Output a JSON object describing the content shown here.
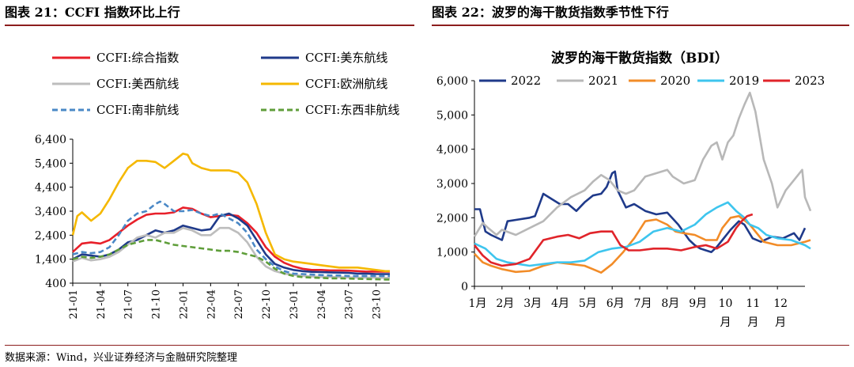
{
  "left_title": "图表 21：CCFI 指数环比上行",
  "right_title": "图表 22：波罗的海干散货指数季节性下行",
  "source": "数据来源：Wind，兴业证券经济与金融研究院整理",
  "chart_data": [
    {
      "type": "line",
      "title": "",
      "x_ticks": [
        "21-01",
        "21-04",
        "21-07",
        "21-10",
        "22-01",
        "22-04",
        "22-07",
        "22-10",
        "23-01",
        "23-04",
        "23-07",
        "23-10"
      ],
      "ylim": [
        400,
        6400
      ],
      "y_ticks": [
        "6,400",
        "5,400",
        "4,400",
        "3,400",
        "2,400",
        "1,400",
        "400"
      ],
      "y_tick_values": [
        6400,
        5400,
        4400,
        3400,
        2400,
        1400,
        400
      ],
      "x_range": [
        0,
        34.5
      ],
      "legend_position": "top",
      "series": [
        {
          "name": "CCFI:综合指数",
          "color": "#e8202a",
          "dash": "solid",
          "x": [
            0,
            1,
            2,
            3,
            4,
            5,
            6,
            7,
            8,
            9,
            10,
            11,
            12,
            13,
            14,
            15,
            16,
            17,
            18,
            19,
            20,
            21,
            22,
            23,
            24,
            25,
            26,
            27,
            28,
            29,
            30,
            31,
            32,
            33,
            34,
            34.5
          ],
          "y": [
            1700,
            2050,
            2100,
            2050,
            2200,
            2500,
            2800,
            3050,
            3250,
            3300,
            3300,
            3350,
            3550,
            3500,
            3300,
            3150,
            3200,
            3250,
            3200,
            2900,
            2500,
            1900,
            1500,
            1250,
            1100,
            1000,
            950,
            950,
            930,
            930,
            920,
            900,
            880,
            880,
            880,
            880
          ]
        },
        {
          "name": "CCFI:美东航线",
          "color": "#1f3a8a",
          "dash": "solid",
          "x": [
            0,
            1,
            2,
            3,
            4,
            5,
            6,
            7,
            8,
            9,
            10,
            11,
            12,
            13,
            14,
            15,
            16,
            17,
            18,
            19,
            20,
            21,
            22,
            23,
            24,
            25,
            26,
            27,
            28,
            29,
            30,
            31,
            32,
            33,
            34,
            34.5
          ],
          "y": [
            1400,
            1600,
            1550,
            1500,
            1600,
            1800,
            2100,
            2200,
            2400,
            2600,
            2500,
            2600,
            2800,
            2700,
            2600,
            2650,
            3200,
            3300,
            3100,
            2800,
            2200,
            1600,
            1200,
            1050,
            950,
            900,
            870,
            860,
            850,
            840,
            830,
            800,
            800,
            780,
            780,
            780
          ]
        },
        {
          "name": "CCFI:美西航线",
          "color": "#bdbdbd",
          "dash": "solid",
          "x": [
            0,
            1,
            2,
            3,
            4,
            5,
            6,
            7,
            8,
            9,
            10,
            11,
            12,
            13,
            14,
            15,
            16,
            17,
            18,
            19,
            20,
            21,
            22,
            23,
            24,
            25,
            26,
            27,
            28,
            29,
            30,
            31,
            32,
            33,
            34,
            34.5
          ],
          "y": [
            1300,
            1450,
            1350,
            1400,
            1500,
            1700,
            2000,
            2300,
            2400,
            2300,
            2500,
            2500,
            2700,
            2600,
            2400,
            2400,
            2700,
            2700,
            2500,
            2100,
            1500,
            1100,
            900,
            800,
            750,
            700,
            680,
            660,
            660,
            650,
            640,
            630,
            630,
            630,
            620,
            620
          ]
        },
        {
          "name": "CCFI:欧洲航线",
          "color": "#f5b800",
          "dash": "solid",
          "x": [
            0,
            0.5,
            1,
            2,
            3,
            4,
            5,
            6,
            7,
            8,
            9,
            10,
            11,
            12,
            12.5,
            13,
            14,
            15,
            16,
            17,
            18,
            19,
            20,
            21,
            22,
            23,
            24,
            25,
            26,
            27,
            28,
            29,
            30,
            31,
            32,
            33,
            34,
            34.5
          ],
          "y": [
            2400,
            3200,
            3350,
            3000,
            3300,
            3900,
            4600,
            5200,
            5500,
            5500,
            5450,
            5200,
            5500,
            5800,
            5750,
            5400,
            5200,
            5100,
            5100,
            5100,
            5000,
            4600,
            3700,
            2500,
            1600,
            1400,
            1300,
            1250,
            1200,
            1150,
            1100,
            1050,
            1050,
            1050,
            1000,
            950,
            900,
            900
          ]
        },
        {
          "name": "CCFI:南非航线",
          "color": "#4a88c6",
          "dash": "dash",
          "x": [
            0,
            1,
            2,
            3,
            4,
            5,
            6,
            7,
            8,
            9,
            9.5,
            10,
            11,
            12,
            13,
            14,
            15,
            16,
            17,
            18,
            19,
            20,
            21,
            22,
            23,
            24,
            25,
            26,
            27,
            28,
            29,
            30,
            31,
            32,
            33,
            34,
            34.5
          ],
          "y": [
            1600,
            1700,
            1650,
            1700,
            1900,
            2400,
            3000,
            3300,
            3400,
            3700,
            3800,
            3700,
            3400,
            3400,
            3450,
            3300,
            3200,
            3300,
            3100,
            2900,
            2500,
            1800,
            1400,
            1100,
            900,
            800,
            780,
            760,
            740,
            720,
            720,
            700,
            700,
            700,
            700,
            700,
            700
          ]
        },
        {
          "name": "CCFI:东西非航线",
          "color": "#5f9e3a",
          "dash": "dash",
          "x": [
            0,
            1,
            2,
            3,
            4,
            5,
            6,
            7,
            8,
            9,
            10,
            11,
            12,
            13,
            14,
            15,
            16,
            17,
            18,
            19,
            20,
            21,
            22,
            23,
            24,
            25,
            26,
            27,
            28,
            29,
            30,
            31,
            32,
            33,
            34,
            34.5
          ],
          "y": [
            1400,
            1500,
            1450,
            1500,
            1600,
            1800,
            2000,
            2100,
            2200,
            2200,
            2100,
            2000,
            1950,
            1900,
            1850,
            1800,
            1750,
            1750,
            1700,
            1600,
            1500,
            1300,
            1000,
            800,
            700,
            650,
            630,
            620,
            600,
            600,
            590,
            580,
            570,
            560,
            550,
            550
          ]
        }
      ]
    },
    {
      "type": "line",
      "title": "波罗的海干散货指数（BDI）",
      "categories": [
        "1月",
        "2月",
        "3月",
        "4月",
        "5月",
        "6月",
        "7月",
        "8月",
        "9月",
        "10月",
        "11月",
        "12月"
      ],
      "x_range": [
        0,
        12
      ],
      "ylim": [
        0,
        6000
      ],
      "y_ticks": [
        "6,000",
        "5,000",
        "4,000",
        "3,000",
        "2,000",
        "1,000",
        "0"
      ],
      "y_tick_values": [
        6000,
        5000,
        4000,
        3000,
        2000,
        1000,
        0
      ],
      "legend_position": "top",
      "series": [
        {
          "name": "2022",
          "color": "#1f3a8a",
          "x": [
            0,
            0.2,
            0.4,
            0.6,
            1.0,
            1.2,
            1.6,
            2.0,
            2.2,
            2.5,
            2.8,
            3.1,
            3.4,
            3.7,
            4.0,
            4.3,
            4.6,
            4.8,
            5.0,
            5.1,
            5.2,
            5.5,
            5.8,
            6.2,
            6.6,
            7.0,
            7.4,
            7.8,
            8.0,
            8.2,
            8.6,
            8.8,
            9.0,
            9.3,
            9.6,
            9.8,
            10.1,
            10.4,
            10.8,
            11.2,
            11.6,
            11.8,
            12.0
          ],
          "y": [
            2250,
            2250,
            1600,
            1500,
            1350,
            1900,
            1950,
            2000,
            2050,
            2700,
            2550,
            2400,
            2400,
            2200,
            2450,
            2650,
            2700,
            2900,
            3300,
            3350,
            2800,
            2300,
            2400,
            2200,
            2100,
            2150,
            1800,
            1350,
            1200,
            1100,
            1000,
            1150,
            1350,
            1650,
            1900,
            1800,
            1400,
            1300,
            1450,
            1400,
            1550,
            1350,
            1700
          ]
        },
        {
          "name": "2021",
          "color": "#b8b8b8",
          "x": [
            0,
            0.3,
            0.5,
            0.8,
            1.0,
            1.5,
            2.0,
            2.5,
            3.0,
            3.5,
            4.0,
            4.3,
            4.6,
            4.9,
            5.2,
            5.5,
            5.8,
            6.2,
            6.6,
            7.0,
            7.2,
            7.6,
            8.0,
            8.3,
            8.6,
            8.8,
            9.0,
            9.2,
            9.4,
            9.6,
            9.8,
            10.0,
            10.2,
            10.5,
            10.8,
            11.0,
            11.3,
            11.6,
            11.9,
            12.0,
            12.2
          ],
          "y": [
            1450,
            1850,
            1700,
            1500,
            1650,
            1500,
            1700,
            1900,
            2300,
            2600,
            2800,
            3050,
            3250,
            3100,
            2800,
            2700,
            2800,
            3200,
            3300,
            3400,
            3200,
            3000,
            3100,
            3700,
            4100,
            4200,
            3700,
            4200,
            4400,
            4900,
            5300,
            5650,
            5100,
            3700,
            3000,
            2300,
            2800,
            3100,
            3400,
            2600,
            2200
          ]
        },
        {
          "name": "2020",
          "color": "#f28c28",
          "x": [
            0,
            0.3,
            0.6,
            1.0,
            1.5,
            2.0,
            2.5,
            3.0,
            3.5,
            4.0,
            4.3,
            4.6,
            5.0,
            5.4,
            5.8,
            6.2,
            6.6,
            7.0,
            7.3,
            7.6,
            8.0,
            8.4,
            8.8,
            9.0,
            9.3,
            9.6,
            10.0,
            10.5,
            11.0,
            11.5,
            12.0,
            12.2
          ],
          "y": [
            950,
            700,
            600,
            500,
            420,
            450,
            600,
            700,
            650,
            600,
            500,
            400,
            650,
            1000,
            1400,
            1900,
            1950,
            1800,
            1600,
            1550,
            1500,
            1350,
            1350,
            1700,
            2000,
            2050,
            1800,
            1300,
            1200,
            1200,
            1300,
            1350
          ]
        },
        {
          "name": "2019",
          "color": "#3ec5ee",
          "x": [
            0,
            0.4,
            0.8,
            1.2,
            1.6,
            2.0,
            2.5,
            3.0,
            3.5,
            4.0,
            4.5,
            5.0,
            5.5,
            6.0,
            6.5,
            7.0,
            7.5,
            8.0,
            8.4,
            8.8,
            9.2,
            9.5,
            9.8,
            10.0,
            10.3,
            10.6,
            11.0,
            11.5,
            12.0,
            12.2
          ],
          "y": [
            1250,
            1100,
            800,
            700,
            650,
            600,
            650,
            700,
            700,
            750,
            1000,
            1100,
            1150,
            1300,
            1600,
            1700,
            1600,
            1800,
            2100,
            2300,
            2450,
            2200,
            2000,
            1800,
            1700,
            1500,
            1400,
            1350,
            1200,
            1100
          ]
        },
        {
          "name": "2023",
          "color": "#e0242a",
          "x": [
            0,
            0.3,
            0.6,
            1.0,
            1.5,
            2.0,
            2.5,
            3.0,
            3.4,
            3.8,
            4.2,
            4.6,
            5.0,
            5.3,
            5.6,
            6.0,
            6.5,
            7.0,
            7.5,
            8.0,
            8.4,
            8.8,
            9.2,
            9.5,
            9.7,
            9.9,
            10.1
          ],
          "y": [
            1200,
            900,
            700,
            600,
            650,
            800,
            1350,
            1450,
            1500,
            1400,
            1550,
            1600,
            1600,
            1200,
            1050,
            1050,
            1100,
            1100,
            1050,
            1150,
            1200,
            1100,
            1300,
            1700,
            1900,
            2050,
            2100
          ]
        }
      ]
    }
  ]
}
